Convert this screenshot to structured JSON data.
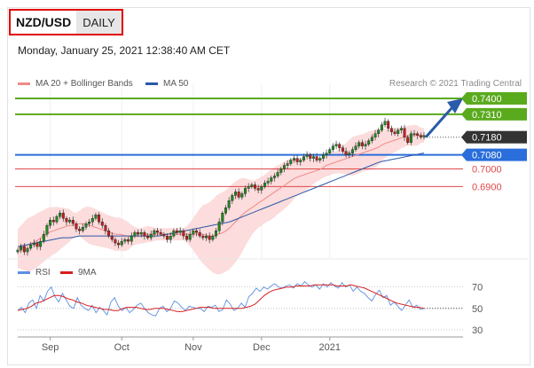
{
  "header": {
    "symbol": "NZD/USD",
    "timeframe": "DAILY",
    "datetime": "Monday, January 25, 2021 12:38:40 AM CET"
  },
  "legend": {
    "ma20_label": "MA 20 + Bollinger Bands",
    "ma50_label": "MA 50",
    "credit": "Research © 2021 Trading Central",
    "rsi_label": "RSI",
    "ma9_label": "9MA"
  },
  "colors": {
    "ma20": "#f08a8a",
    "ma50": "#2a5aa8",
    "bands_fill": "#fbd6d6",
    "candle_up": "#1f8a1f",
    "candle_down": "#c41e1e",
    "resistance": "#5aaa1e",
    "current": "#333333",
    "pivot": "#2a6edb",
    "support": "#e04848",
    "rsi": "#5b8fe0",
    "ma9": "#d81e1e"
  },
  "chart_data": [
    {
      "type": "candlestick",
      "title": "NZD/USD",
      "x_ticks": [
        "Sep",
        "Oct",
        "Nov",
        "Dec",
        "2021"
      ],
      "ylim": [
        0.65,
        0.746
      ],
      "levels": [
        {
          "value": 0.74,
          "label": "0.7400",
          "kind": "resistance"
        },
        {
          "value": 0.731,
          "label": "0.7310",
          "kind": "resistance"
        },
        {
          "value": 0.718,
          "label": "0.7180",
          "kind": "current"
        },
        {
          "value": 0.708,
          "label": "0.7080",
          "kind": "pivot"
        },
        {
          "value": 0.7,
          "label": "0.7000",
          "kind": "support"
        },
        {
          "value": 0.69,
          "label": "0.6900",
          "kind": "support"
        }
      ],
      "closes": [
        0.654,
        0.656,
        0.653,
        0.655,
        0.657,
        0.658,
        0.656,
        0.659,
        0.663,
        0.668,
        0.671,
        0.67,
        0.673,
        0.675,
        0.672,
        0.67,
        0.671,
        0.669,
        0.666,
        0.665,
        0.667,
        0.669,
        0.67,
        0.672,
        0.674,
        0.67,
        0.668,
        0.665,
        0.662,
        0.66,
        0.658,
        0.657,
        0.659,
        0.66,
        0.659,
        0.662,
        0.664,
        0.663,
        0.664,
        0.662,
        0.661,
        0.663,
        0.665,
        0.664,
        0.663,
        0.662,
        0.66,
        0.662,
        0.665,
        0.664,
        0.665,
        0.662,
        0.66,
        0.663,
        0.665,
        0.664,
        0.662,
        0.661,
        0.662,
        0.66,
        0.662,
        0.665,
        0.67,
        0.675,
        0.678,
        0.682,
        0.685,
        0.687,
        0.684,
        0.686,
        0.689,
        0.69,
        0.691,
        0.689,
        0.688,
        0.69,
        0.692,
        0.693,
        0.695,
        0.696,
        0.698,
        0.7,
        0.702,
        0.703,
        0.705,
        0.706,
        0.704,
        0.705,
        0.707,
        0.708,
        0.706,
        0.707,
        0.705,
        0.706,
        0.708,
        0.709,
        0.711,
        0.713,
        0.714,
        0.712,
        0.71,
        0.708,
        0.709,
        0.711,
        0.713,
        0.715,
        0.713,
        0.714,
        0.716,
        0.718,
        0.72,
        0.722,
        0.725,
        0.727,
        0.723,
        0.721,
        0.72,
        0.722,
        0.723,
        0.718,
        0.715,
        0.72,
        0.72,
        0.719,
        0.718,
        0.719
      ],
      "ma20": [
        0.655,
        0.656,
        0.657,
        0.658,
        0.66,
        0.662,
        0.664,
        0.665,
        0.666,
        0.667,
        0.668,
        0.668,
        0.669,
        0.669,
        0.668,
        0.667,
        0.666,
        0.665,
        0.664,
        0.663,
        0.663,
        0.662,
        0.662,
        0.662,
        0.662,
        0.663,
        0.663,
        0.663,
        0.663,
        0.663,
        0.663,
        0.663,
        0.663,
        0.663,
        0.663,
        0.663,
        0.663,
        0.662,
        0.662,
        0.663,
        0.664,
        0.666,
        0.669,
        0.672,
        0.675,
        0.677,
        0.679,
        0.681,
        0.683,
        0.685,
        0.687,
        0.689,
        0.691,
        0.693,
        0.695,
        0.696,
        0.697,
        0.698,
        0.699,
        0.7,
        0.702,
        0.703,
        0.704,
        0.705,
        0.706,
        0.707,
        0.708,
        0.709,
        0.71,
        0.711,
        0.712,
        0.714,
        0.715,
        0.716,
        0.717,
        0.718,
        0.719,
        0.719,
        0.719,
        0.719
      ],
      "ma50": [
        0.656,
        0.657,
        0.658,
        0.659,
        0.66,
        0.661,
        0.661,
        0.662,
        0.662,
        0.662,
        0.662,
        0.662,
        0.662,
        0.662,
        0.662,
        0.662,
        0.662,
        0.663,
        0.664,
        0.665,
        0.666,
        0.667,
        0.668,
        0.669,
        0.67,
        0.672,
        0.674,
        0.676,
        0.678,
        0.68,
        0.682,
        0.684,
        0.686,
        0.688,
        0.69,
        0.692,
        0.694,
        0.696,
        0.698,
        0.7,
        0.702,
        0.704,
        0.705,
        0.706,
        0.707,
        0.708,
        0.709
      ],
      "current_price": 0.718
    },
    {
      "type": "line",
      "title": "RSI",
      "ylim": [
        25,
        78
      ],
      "y_ticks": [
        70,
        50,
        30
      ],
      "series": [
        {
          "name": "RSI",
          "values": [
            48,
            51,
            46,
            55,
            58,
            50,
            62,
            57,
            66,
            70,
            61,
            56,
            64,
            58,
            52,
            50,
            60,
            53,
            50,
            48,
            53,
            46,
            51,
            48,
            44,
            56,
            60,
            52,
            48,
            51,
            46,
            49,
            53,
            55,
            50,
            46,
            44,
            43,
            50,
            52,
            47,
            50,
            57,
            55,
            51,
            48,
            52,
            51,
            50,
            50,
            47,
            52,
            51,
            53,
            47,
            49,
            58,
            54,
            48,
            50,
            55,
            51,
            61,
            64,
            69,
            66,
            70,
            68,
            71,
            73,
            70,
            69,
            71,
            72,
            69,
            73,
            71,
            75,
            72,
            70,
            72,
            68,
            73,
            70,
            74,
            71,
            69,
            74,
            70,
            72,
            66,
            70,
            66,
            64,
            60,
            57,
            63,
            67,
            60,
            62,
            53,
            56,
            52,
            48,
            53,
            58,
            51,
            53,
            49,
            50
          ]
        },
        {
          "name": "9MA",
          "values": [
            48,
            49,
            50,
            52,
            55,
            56,
            58,
            60,
            62,
            62,
            61,
            59,
            58,
            56,
            55,
            53,
            52,
            51,
            50,
            49,
            49,
            48,
            48,
            50,
            51,
            51,
            51,
            50,
            49,
            49,
            50,
            50,
            50,
            49,
            48,
            47,
            47,
            48,
            49,
            50,
            51,
            51,
            51,
            50,
            50,
            50,
            50,
            50,
            50,
            50,
            51,
            52,
            54,
            58,
            62,
            65,
            67,
            68,
            69,
            70,
            70,
            71,
            71,
            71,
            71,
            72,
            72,
            72,
            72,
            72,
            71,
            71,
            71,
            72,
            71,
            70,
            69,
            67,
            65,
            63,
            61,
            59,
            57,
            55,
            54,
            53,
            52,
            51,
            51,
            50
          ]
        }
      ]
    }
  ]
}
